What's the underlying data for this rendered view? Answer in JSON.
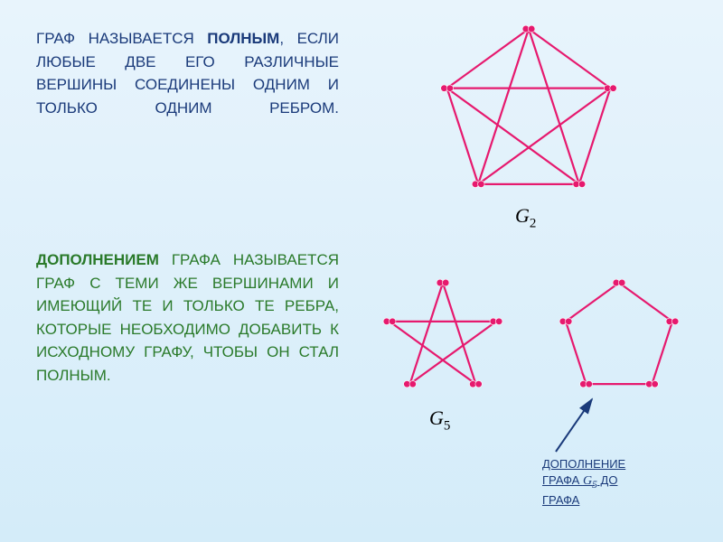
{
  "colors": {
    "edge": "#e6196e",
    "vertex": "#e6196e",
    "text_blue": "#1a3a7a",
    "text_green": "#2a7a2a",
    "arrow": "#1a3a7a",
    "bg_top": "#e8f4fc",
    "bg_bottom": "#d4ecf9"
  },
  "typography": {
    "body_fontsize": 17,
    "label_fontsize": 22,
    "caption_fontsize": 13,
    "edge_width": 2.2,
    "vertex_radius": 5
  },
  "text_top": {
    "plain1": "ГРАФ НАЗЫВАЕТСЯ ",
    "bold1": "ПОЛНЫМ",
    "plain2": ", ЕСЛИ ЛЮБЫЕ ДВЕ ЕГО РАЗЛИЧНЫЕ ВЕРШИНЫ СОЕДИНЕНЫ ОДНИМ И ТОЛЬКО ОДНИМ РЕБРОМ."
  },
  "text_bottom": {
    "bold1": "ДОПОЛНЕНИЕМ",
    "plain1": " ГРАФА НАЗЫВАЕТСЯ ГРАФ С ТЕМИ ЖЕ ВЕРШИНАМИ И ИМЕЮЩИЙ ТЕ И ТОЛЬКО ТЕ РЕБРА, КОТОРЫЕ НЕОБХОДИМО ДОБАВИТЬ К ИСХОДНОМУ ГРАФУ, ЧТОБЫ ОН СТАЛ ПОЛНЫМ."
  },
  "graph_g2": {
    "label": "G",
    "sub": "2",
    "type": "network",
    "vertex_count": 5,
    "radius": 95,
    "complete": true,
    "double_vertex": true
  },
  "graph_g5": {
    "label": "G",
    "sub": "5",
    "type": "network",
    "vertex_count": 5,
    "radius": 62,
    "edges": [
      [
        0,
        2
      ],
      [
        2,
        4
      ],
      [
        4,
        1
      ],
      [
        1,
        3
      ],
      [
        3,
        0
      ]
    ],
    "double_vertex": true
  },
  "graph_complement": {
    "type": "network",
    "vertex_count": 5,
    "radius": 62,
    "edges": [
      [
        0,
        1
      ],
      [
        1,
        2
      ],
      [
        2,
        3
      ],
      [
        3,
        4
      ],
      [
        4,
        0
      ]
    ],
    "double_vertex": true
  },
  "caption": {
    "line1": "ДОПОЛНЕНИЕ",
    "line2_a": "ГРАФА ",
    "line2_g": "G",
    "line2_sub": "5",
    "line2_b": " ДО",
    "line3": "ГРАФА"
  }
}
